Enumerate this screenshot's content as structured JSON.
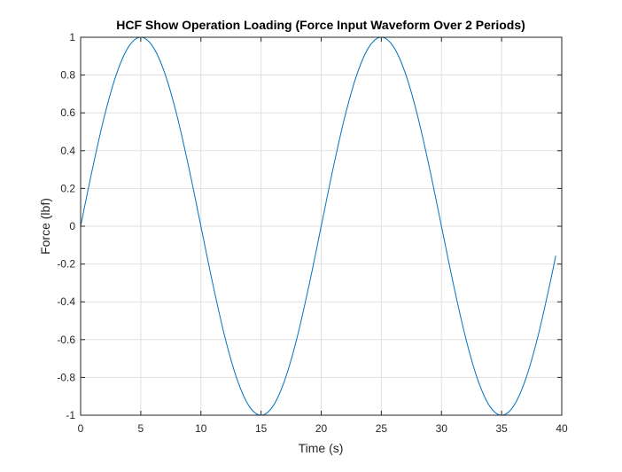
{
  "chart_data": {
    "type": "line",
    "title": "HCF Show Operation Loading (Force Input Waveform Over 2 Periods)",
    "xlabel": "Time (s)",
    "ylabel": "Force (lbf)",
    "xlim": [
      0,
      40
    ],
    "ylim": [
      -1,
      1
    ],
    "xticks": [
      0,
      5,
      10,
      15,
      20,
      25,
      30,
      35,
      40
    ],
    "yticks": [
      -1,
      -0.8,
      -0.6,
      -0.4,
      -0.2,
      0,
      0.2,
      0.4,
      0.6,
      0.8,
      1
    ],
    "grid": true,
    "legend": "none",
    "series": [
      {
        "color": "#0072bd",
        "x": [
          0,
          1,
          2,
          3,
          4,
          5,
          6,
          7,
          8,
          9,
          10,
          11,
          12,
          13,
          14,
          15,
          16,
          17,
          18,
          19,
          20,
          21,
          22,
          23,
          24,
          25,
          26,
          27,
          28,
          29,
          30,
          31,
          32,
          33,
          34,
          35,
          36,
          37,
          38,
          39,
          39.5
        ],
        "y": [
          0,
          0.309,
          0.588,
          0.809,
          0.951,
          1,
          0.951,
          0.809,
          0.588,
          0.309,
          0,
          -0.309,
          -0.588,
          -0.809,
          -0.951,
          -1,
          -0.951,
          -0.809,
          -0.588,
          -0.309,
          0,
          0.309,
          0.588,
          0.809,
          0.951,
          1,
          0.951,
          0.809,
          0.588,
          0.309,
          0,
          -0.309,
          -0.588,
          -0.809,
          -0.951,
          -1,
          -0.951,
          -0.809,
          -0.588,
          -0.309,
          -0.156
        ]
      }
    ]
  },
  "colors": {
    "line": "#0072bd",
    "axis": "#262626",
    "grid": "#dfdfdf"
  }
}
